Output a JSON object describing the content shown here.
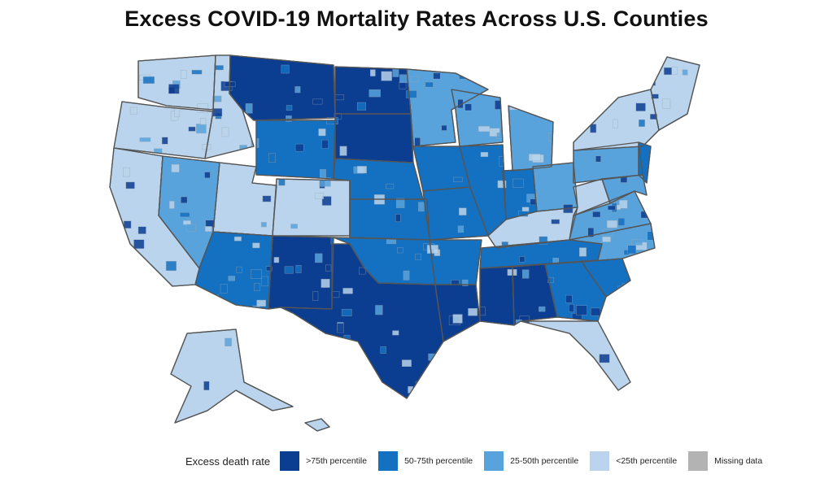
{
  "title": "Excess COVID-19 Mortality Rates Across U.S. Counties",
  "legend": {
    "title": "Excess death rate",
    "items": [
      {
        "key": "q4",
        "label": ">75th percentile",
        "color": "#0b3d91"
      },
      {
        "key": "q3",
        "label": "50-75th percentile",
        "color": "#1470c0"
      },
      {
        "key": "q2",
        "label": "25-50th percentile",
        "color": "#59a3dc"
      },
      {
        "key": "q1",
        "label": "<25th percentile",
        "color": "#b9d4ec"
      },
      {
        "key": "na",
        "label": "Missing data",
        "color": "#b3b3b3"
      }
    ]
  },
  "map": {
    "type": "choropleth",
    "variable": "Excess death rate percentile",
    "regions": [
      {
        "name": "Washington",
        "class": "q1"
      },
      {
        "name": "Oregon",
        "class": "q1"
      },
      {
        "name": "California",
        "class": "q1"
      },
      {
        "name": "Idaho",
        "class": "q1"
      },
      {
        "name": "Nevada",
        "class": "q2"
      },
      {
        "name": "Utah",
        "class": "q1"
      },
      {
        "name": "Arizona",
        "class": "q3"
      },
      {
        "name": "Montana",
        "class": "q4"
      },
      {
        "name": "Wyoming",
        "class": "q3"
      },
      {
        "name": "Colorado",
        "class": "q1"
      },
      {
        "name": "New Mexico",
        "class": "q4"
      },
      {
        "name": "North Dakota",
        "class": "q4"
      },
      {
        "name": "South Dakota",
        "class": "q4"
      },
      {
        "name": "Nebraska",
        "class": "q3"
      },
      {
        "name": "Kansas",
        "class": "q3"
      },
      {
        "name": "Oklahoma",
        "class": "q3"
      },
      {
        "name": "Texas",
        "class": "q4"
      },
      {
        "name": "Minnesota",
        "class": "q2"
      },
      {
        "name": "Iowa",
        "class": "q3"
      },
      {
        "name": "Missouri",
        "class": "q3"
      },
      {
        "name": "Arkansas",
        "class": "q3"
      },
      {
        "name": "Louisiana",
        "class": "q4"
      },
      {
        "name": "Wisconsin",
        "class": "q2"
      },
      {
        "name": "Illinois",
        "class": "q3"
      },
      {
        "name": "Michigan",
        "class": "q2"
      },
      {
        "name": "Indiana",
        "class": "q3"
      },
      {
        "name": "Ohio",
        "class": "q2"
      },
      {
        "name": "Kentucky",
        "class": "q1"
      },
      {
        "name": "Tennessee",
        "class": "q3"
      },
      {
        "name": "Mississippi",
        "class": "q4"
      },
      {
        "name": "Alabama",
        "class": "q4"
      },
      {
        "name": "Georgia",
        "class": "q3"
      },
      {
        "name": "Florida",
        "class": "q1"
      },
      {
        "name": "South Carolina",
        "class": "q3"
      },
      {
        "name": "North Carolina",
        "class": "q2"
      },
      {
        "name": "Virginia",
        "class": "q2"
      },
      {
        "name": "West Virginia",
        "class": "q1"
      },
      {
        "name": "Pennsylvania",
        "class": "q2"
      },
      {
        "name": "New York",
        "class": "q1"
      },
      {
        "name": "New England",
        "class": "q1"
      },
      {
        "name": "New Jersey",
        "class": "q3"
      },
      {
        "name": "Maryland",
        "class": "q2"
      },
      {
        "name": "Alaska",
        "class": "q1"
      },
      {
        "name": "Hawaii",
        "class": "q1"
      }
    ]
  }
}
